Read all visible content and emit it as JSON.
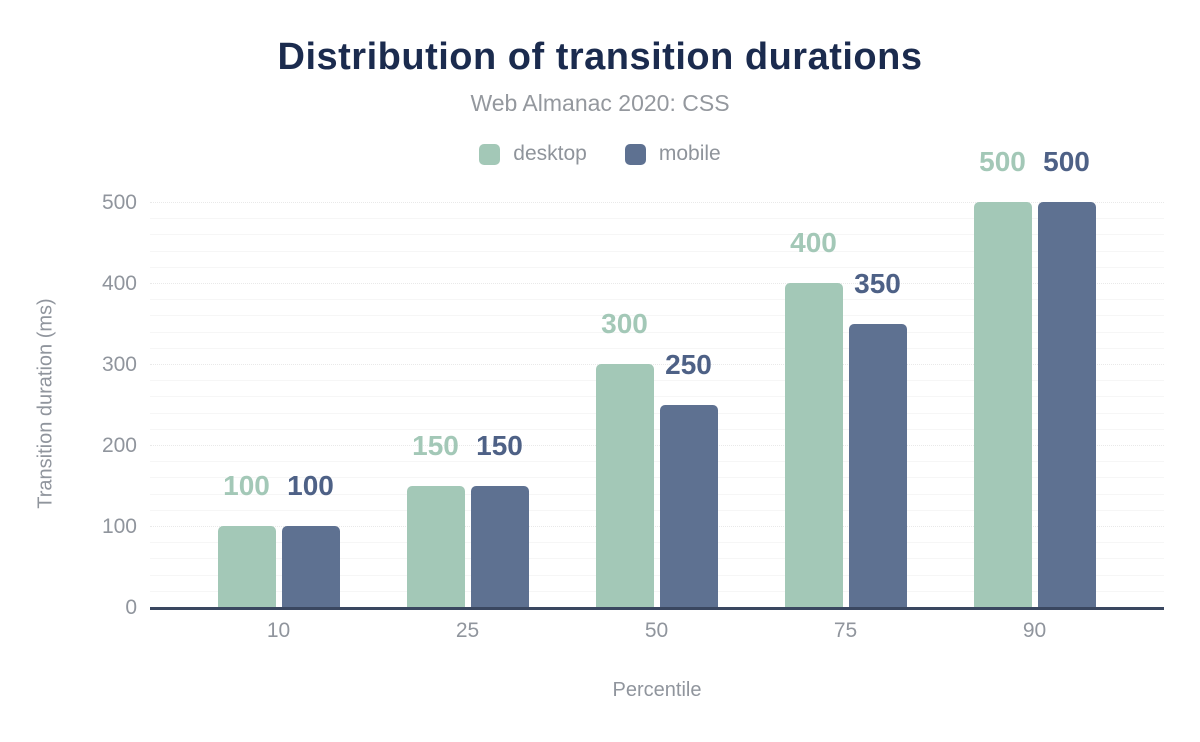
{
  "title": "Distribution of transition durations",
  "subtitle": "Web Almanac 2020: CSS",
  "legend": {
    "items": [
      {
        "label": "desktop",
        "color": "#a3c8b7"
      },
      {
        "label": "mobile",
        "color": "#5e7191"
      }
    ]
  },
  "colors": {
    "background": "#ffffff",
    "title_text": "#1b2b4e",
    "subtitle_text": "#94989e",
    "axis_text": "#90959d",
    "axis_line": "#3a4760",
    "grid_major": "#e9e9e9",
    "grid_minor": "#f6f6f6",
    "desktop_series": "#a3c8b7",
    "mobile_series": "#5e7191",
    "desktop_value_label": "#a3c8b7",
    "mobile_value_label": "#4e6186"
  },
  "chart_data": {
    "type": "bar",
    "title": "Distribution of transition durations",
    "subtitle": "Web Almanac 2020: CSS",
    "categories": [
      "10",
      "25",
      "50",
      "75",
      "90"
    ],
    "series": [
      {
        "name": "desktop",
        "values": [
          100,
          150,
          300,
          400,
          500
        ],
        "color": "#a3c8b7",
        "label_color": "#a3c8b7"
      },
      {
        "name": "mobile",
        "values": [
          100,
          150,
          250,
          350,
          500
        ],
        "color": "#5e7191",
        "label_color": "#4e6186"
      }
    ],
    "data_labels_visible": true,
    "xlabel": "Percentile",
    "ylabel": "Transition duration (ms)",
    "ylim": [
      0,
      500
    ],
    "yticks": [
      0,
      100,
      200,
      300,
      400,
      500
    ],
    "grid": "horizontal; minor step 20, major step 100; dotted light gray",
    "legend_position": "top-center"
  }
}
